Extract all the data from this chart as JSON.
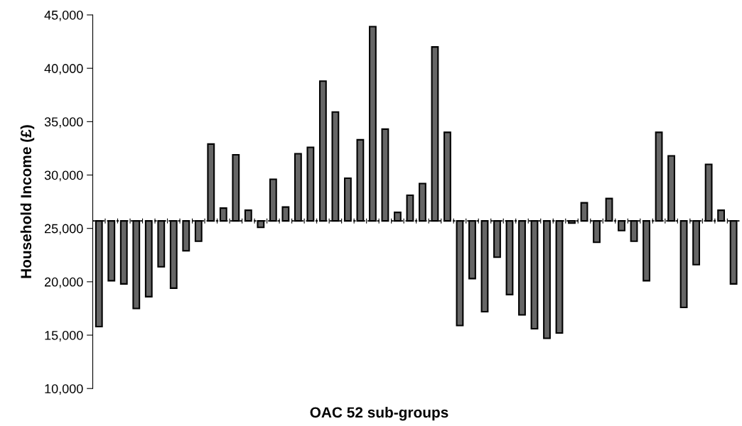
{
  "chart_data": {
    "type": "bar",
    "xlabel": "OAC 52 sub-groups",
    "ylabel": "Household Income (£)",
    "categories": [
      null,
      null,
      null,
      null,
      null,
      null,
      null,
      null,
      null,
      null,
      null,
      null,
      null,
      null,
      null,
      null,
      null,
      null,
      null,
      null,
      null,
      null,
      null,
      null,
      null,
      null,
      null,
      null,
      null,
      null,
      null,
      null,
      null,
      null,
      null,
      null,
      null,
      null,
      null,
      null,
      null,
      null,
      null,
      null,
      null,
      null,
      null,
      null,
      null,
      null,
      null,
      null
    ],
    "base": [
      25700,
      25700,
      25700,
      25700,
      25700,
      25700,
      25700,
      25700,
      25700,
      25700,
      25700,
      25700,
      25700,
      25700,
      25700,
      25700,
      25700,
      25700,
      25700,
      25700,
      25700,
      25700,
      25700,
      25700,
      25700,
      25700,
      25700,
      25700,
      25700,
      25700,
      25700,
      25700,
      25700,
      25700,
      25700,
      25700,
      25700,
      25700,
      25700,
      25700,
      25700,
      25700,
      25700,
      25700,
      25700,
      25700,
      25700,
      25700,
      25700,
      25700,
      25700,
      25700
    ],
    "values": [
      -9900,
      -5600,
      -5900,
      -8200,
      -7100,
      -4300,
      -6300,
      -2800,
      -1900,
      7200,
      1200,
      6200,
      1000,
      -600,
      3900,
      1300,
      6300,
      6900,
      13100,
      10200,
      4000,
      7600,
      18200,
      8600,
      800,
      2400,
      3500,
      16300,
      8300,
      -9800,
      -5400,
      -8500,
      -3400,
      -6900,
      -8800,
      -10100,
      -11000,
      -10500,
      -200,
      1700,
      -2000,
      2100,
      -900,
      -1900,
      -5600,
      8300,
      6100,
      -8100,
      -4100,
      5300,
      1000,
      -5900
    ],
    "color": "#666666",
    "ylim": [
      10000,
      45000
    ],
    "yticks": [
      {
        "value": 10000,
        "label": "10,000"
      },
      {
        "value": 15000,
        "label": "15,000"
      },
      {
        "value": 20000,
        "label": "20,000"
      },
      {
        "value": 25000,
        "label": "25,000"
      },
      {
        "value": 30000,
        "label": "30,000"
      },
      {
        "value": 35000,
        "label": "35,000"
      },
      {
        "value": 40000,
        "label": "40,000"
      },
      {
        "value": 45000,
        "label": "45,000"
      }
    ],
    "ref_lines": [
      {
        "axis": "y",
        "value": 25700,
        "color": "#000000",
        "line_style": "dashed"
      }
    ],
    "tick_labels": "y",
    "grid": false,
    "legend": false
  }
}
